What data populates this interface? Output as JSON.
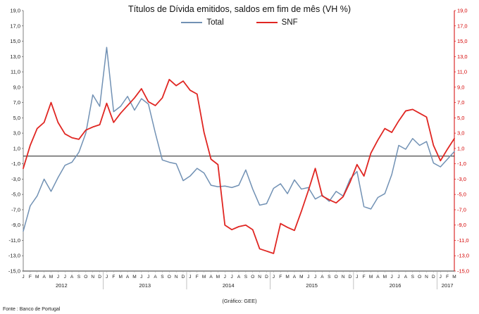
{
  "chart_data": {
    "type": "line",
    "title": "Títulos de Dívida emitidos, saldos em fim de mês  (VH %)",
    "ylim": [
      -15,
      19
    ],
    "yticks": [
      19,
      17,
      15,
      13,
      11,
      9,
      7,
      5,
      3,
      1,
      -1,
      -3,
      -5,
      -7,
      -9,
      -11,
      -13,
      -15
    ],
    "right_axis_color": "#d40000",
    "zero_line": true,
    "grid": false,
    "legend_position": "top",
    "month_labels": [
      "J",
      "F",
      "M",
      "A",
      "M",
      "J",
      "J",
      "A",
      "S",
      "O",
      "N",
      "D"
    ],
    "years": [
      {
        "label": "2012",
        "months": 12
      },
      {
        "label": "2013",
        "months": 12
      },
      {
        "label": "2014",
        "months": 12
      },
      {
        "label": "2015",
        "months": 12
      },
      {
        "label": "2016",
        "months": 12
      },
      {
        "label": "2017",
        "months": 3
      }
    ],
    "series": [
      {
        "name": "Total",
        "color": "#7191b4",
        "values": [
          -9.8,
          -6.5,
          -5.2,
          -3.0,
          -4.6,
          -2.8,
          -1.2,
          -0.8,
          0.5,
          3.0,
          8.0,
          6.5,
          14.2,
          5.8,
          6.5,
          7.8,
          6.0,
          7.5,
          6.8,
          3.0,
          -0.5,
          -0.8,
          -1.0,
          -3.2,
          -2.6,
          -1.6,
          -2.2,
          -3.8,
          -4.0,
          -3.9,
          -4.1,
          -3.8,
          -1.8,
          -4.3,
          -6.4,
          -6.2,
          -4.2,
          -3.6,
          -4.9,
          -3.1,
          -4.3,
          -4.1,
          -5.6,
          -5.1,
          -5.9,
          -4.6,
          -5.2,
          -3.0,
          -2.0,
          -6.6,
          -6.9,
          -5.4,
          -4.9,
          -2.4,
          1.4,
          0.9,
          2.3,
          1.4,
          1.9,
          -0.9,
          -1.4,
          -0.4,
          0.6
        ]
      },
      {
        "name": "SNF",
        "color": "#e02622",
        "values": [
          -1.6,
          1.4,
          3.6,
          4.4,
          7.0,
          4.4,
          2.9,
          2.4,
          2.2,
          3.4,
          3.8,
          4.1,
          6.9,
          4.4,
          5.6,
          6.6,
          7.6,
          8.8,
          7.1,
          6.6,
          7.6,
          10.0,
          9.2,
          9.8,
          8.6,
          8.1,
          3.1,
          -0.4,
          -1.1,
          -9.0,
          -9.6,
          -9.2,
          -9.0,
          -9.6,
          -12.1,
          -12.4,
          -12.7,
          -8.8,
          -9.3,
          -9.7,
          -7.2,
          -4.5,
          -1.6,
          -5.2,
          -5.7,
          -6.1,
          -5.3,
          -3.4,
          -1.1,
          -2.6,
          0.4,
          2.1,
          3.6,
          3.1,
          4.6,
          5.9,
          6.1,
          5.6,
          5.1,
          1.4,
          -0.6,
          0.9,
          2.3
        ]
      }
    ]
  },
  "footer": {
    "source": "Fonte : Banco de Portugal",
    "credit": "(Gráfico: GEE)"
  }
}
